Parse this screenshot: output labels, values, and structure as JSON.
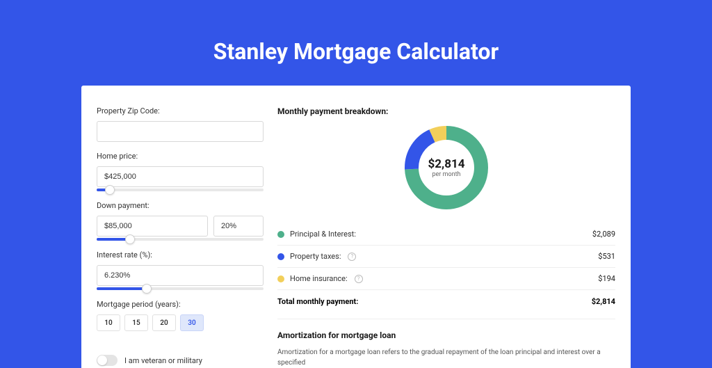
{
  "page": {
    "title": "Stanley Mortgage Calculator",
    "background_color": "#3355e8",
    "card_background": "#ffffff",
    "title_color": "#ffffff",
    "title_fontsize": 32
  },
  "form": {
    "zip_label": "Property Zip Code:",
    "zip_value": "",
    "price_label": "Home price:",
    "price_value": "$425,000",
    "price_slider_pct": 8,
    "down_label": "Down payment:",
    "down_value": "$85,000",
    "down_pct_value": "20%",
    "down_slider_pct": 20,
    "rate_label": "Interest rate (%):",
    "rate_value": "6.230%",
    "rate_slider_pct": 30,
    "period_label": "Mortgage period (years):",
    "period_options": [
      "10",
      "15",
      "20",
      "30"
    ],
    "period_selected": "30",
    "veteran_label": "I am veteran or military",
    "veteran_on": false,
    "slider_fill_color": "#3355e8",
    "slider_track_color": "#e8e8e8"
  },
  "breakdown": {
    "title": "Monthly payment breakdown:",
    "center_amount": "$2,814",
    "center_sub": "per month",
    "items": [
      {
        "label": "Principal & Interest:",
        "value": "$2,089",
        "color": "#4eb08b",
        "pct": 74.2,
        "info": false
      },
      {
        "label": "Property taxes:",
        "value": "$531",
        "color": "#3355e8",
        "pct": 18.9,
        "info": true
      },
      {
        "label": "Home insurance:",
        "value": "$194",
        "color": "#f2cf5a",
        "pct": 6.9,
        "info": true
      }
    ],
    "total_label": "Total monthly payment:",
    "total_value": "$2,814",
    "donut": {
      "radius": 50,
      "stroke_width": 20,
      "background": "#ffffff"
    }
  },
  "amortization": {
    "title": "Amortization for mortgage loan",
    "text": "Amortization for a mortgage loan refers to the gradual repayment of the loan principal and interest over a specified"
  }
}
